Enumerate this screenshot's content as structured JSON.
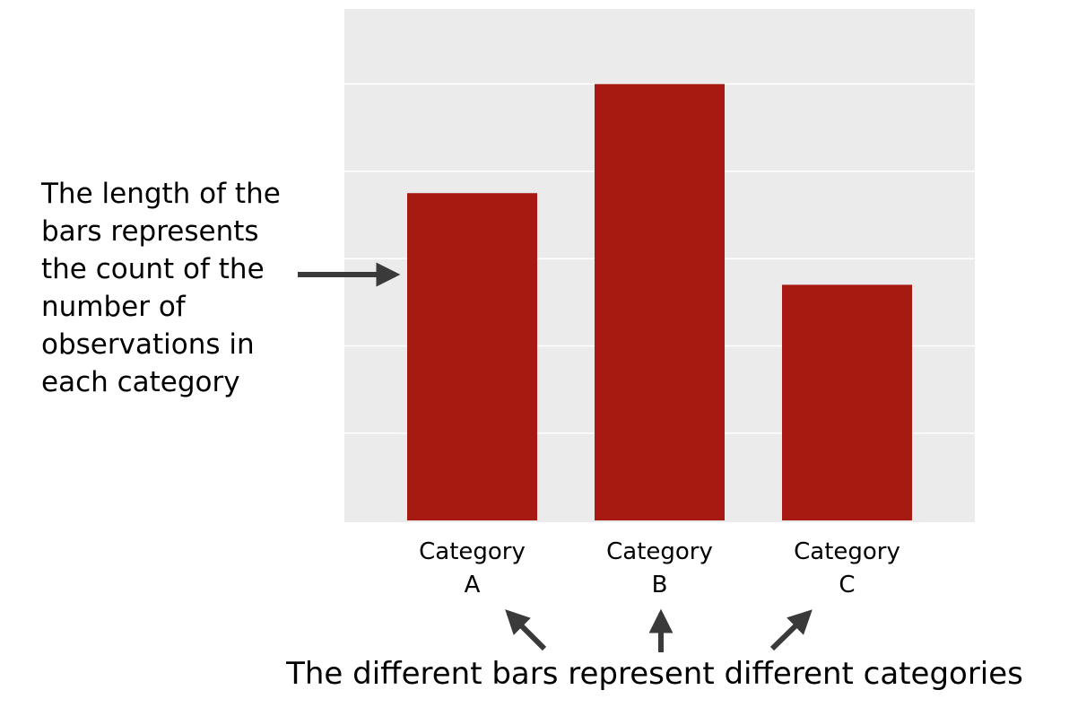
{
  "colors": {
    "panel_background": "#ebebeb",
    "gridline": "#ffffff",
    "bar_fill": "#a61a12",
    "text": "#000000",
    "arrow": "#3a3a3a"
  },
  "chart_data": {
    "type": "bar",
    "categories": [
      [
        "Category",
        "A"
      ],
      [
        "Category",
        "B"
      ],
      [
        "Category",
        "C"
      ]
    ],
    "values": [
      3.75,
      5.0,
      2.7
    ],
    "ylim": [
      0,
      5.86
    ],
    "y_gridlines": [
      1,
      2,
      3,
      4,
      5
    ],
    "show_y_ticks": false,
    "show_y_labels": false,
    "title": "",
    "xlabel": "",
    "ylabel": "",
    "grid": true,
    "annotations": {
      "left": {
        "lines": [
          "The length of the",
          "bars represents",
          "the count of the",
          "number of",
          "observations in",
          "each category"
        ],
        "icon": "arrow-right-icon"
      },
      "bottom": {
        "text": "The different bars represent different categories",
        "icons": [
          "arrow-up-left-icon",
          "arrow-up-icon",
          "arrow-up-right-icon"
        ]
      }
    }
  }
}
